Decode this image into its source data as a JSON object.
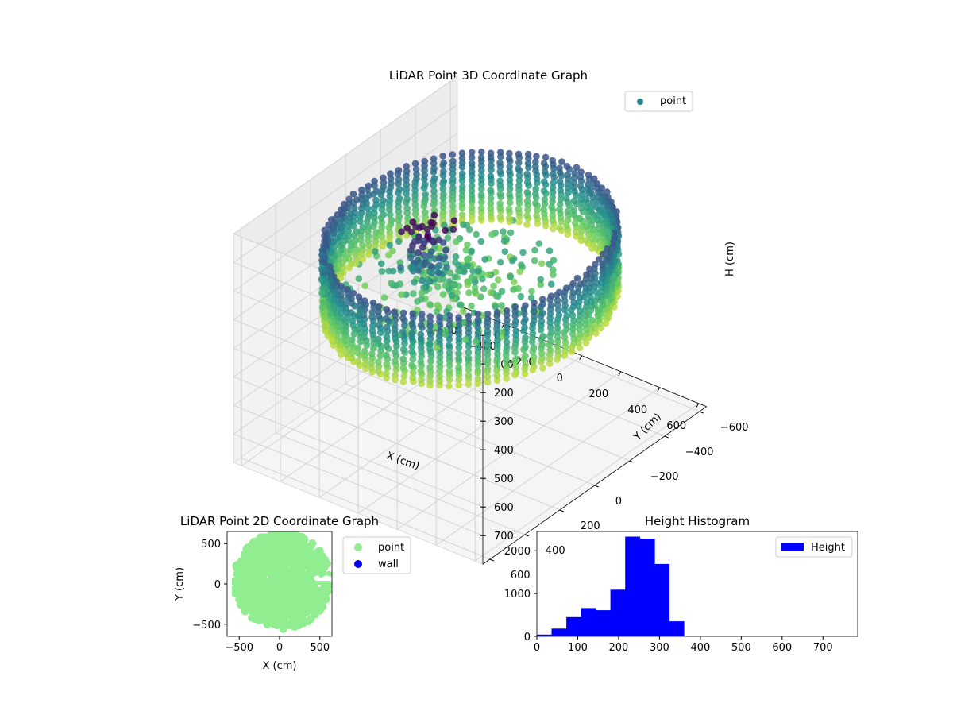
{
  "chart_data": [
    {
      "type": "scatter",
      "projection": "3d",
      "title": "LiDAR Point 3D Coordinate Graph",
      "xlabel": "X (cm)",
      "ylabel": "Y (cm)",
      "zlabel": "H (cm)",
      "xlim": [
        -600,
        600
      ],
      "ylim": [
        -600,
        600
      ],
      "zlim": [
        0,
        700
      ],
      "z_inverted": true,
      "xticks": [
        "−600",
        "−400",
        "−200",
        "0",
        "200",
        "400",
        "600"
      ],
      "yticks": [
        "600",
        "400",
        "200",
        "0",
        "−200",
        "−400",
        "−600"
      ],
      "zticks": [
        "0",
        "100",
        "200",
        "300",
        "400",
        "500",
        "600",
        "700"
      ],
      "legend": [
        "point"
      ],
      "legend_position": "top-right",
      "colormap": "viridis",
      "grid": true,
      "shape": "circular wall of points, radius ~560 cm, heights ~100–350 cm, with interior clutter around center",
      "wall_radius": 560,
      "wall_height_range": [
        100,
        350
      ]
    },
    {
      "type": "scatter",
      "title": "LiDAR Point 2D Coordinate Graph",
      "xlabel": "X (cm)",
      "ylabel": "Y (cm)",
      "xlim": [
        -650,
        650
      ],
      "ylim": [
        -650,
        650
      ],
      "xticks": [
        "−500",
        "0",
        "500"
      ],
      "yticks": [
        "500",
        "0",
        "−500"
      ],
      "legend": [
        "point",
        "wall"
      ],
      "legend_position": "outside right",
      "colors": {
        "point": "#90ee90",
        "wall": "#0000ff"
      },
      "shape": "filled disc of points, radius ~600 cm"
    },
    {
      "type": "bar",
      "title": "Height Histogram",
      "legend": [
        "Height"
      ],
      "legend_position": "top-right",
      "color": "#0000ff",
      "bin_width": 36,
      "bins": [
        {
          "start": 0,
          "count": 40
        },
        {
          "start": 36,
          "count": 180
        },
        {
          "start": 72,
          "count": 450
        },
        {
          "start": 108,
          "count": 660
        },
        {
          "start": 144,
          "count": 610
        },
        {
          "start": 180,
          "count": 1090
        },
        {
          "start": 216,
          "count": 2330
        },
        {
          "start": 252,
          "count": 2280
        },
        {
          "start": 288,
          "count": 1690
        },
        {
          "start": 324,
          "count": 350
        }
      ],
      "xlim": [
        0,
        785
      ],
      "ylim": [
        0,
        2450
      ],
      "xticks": [
        "0",
        "100",
        "200",
        "300",
        "400",
        "500",
        "600",
        "700"
      ],
      "yticks": [
        "0",
        "1000",
        "2000"
      ]
    }
  ]
}
